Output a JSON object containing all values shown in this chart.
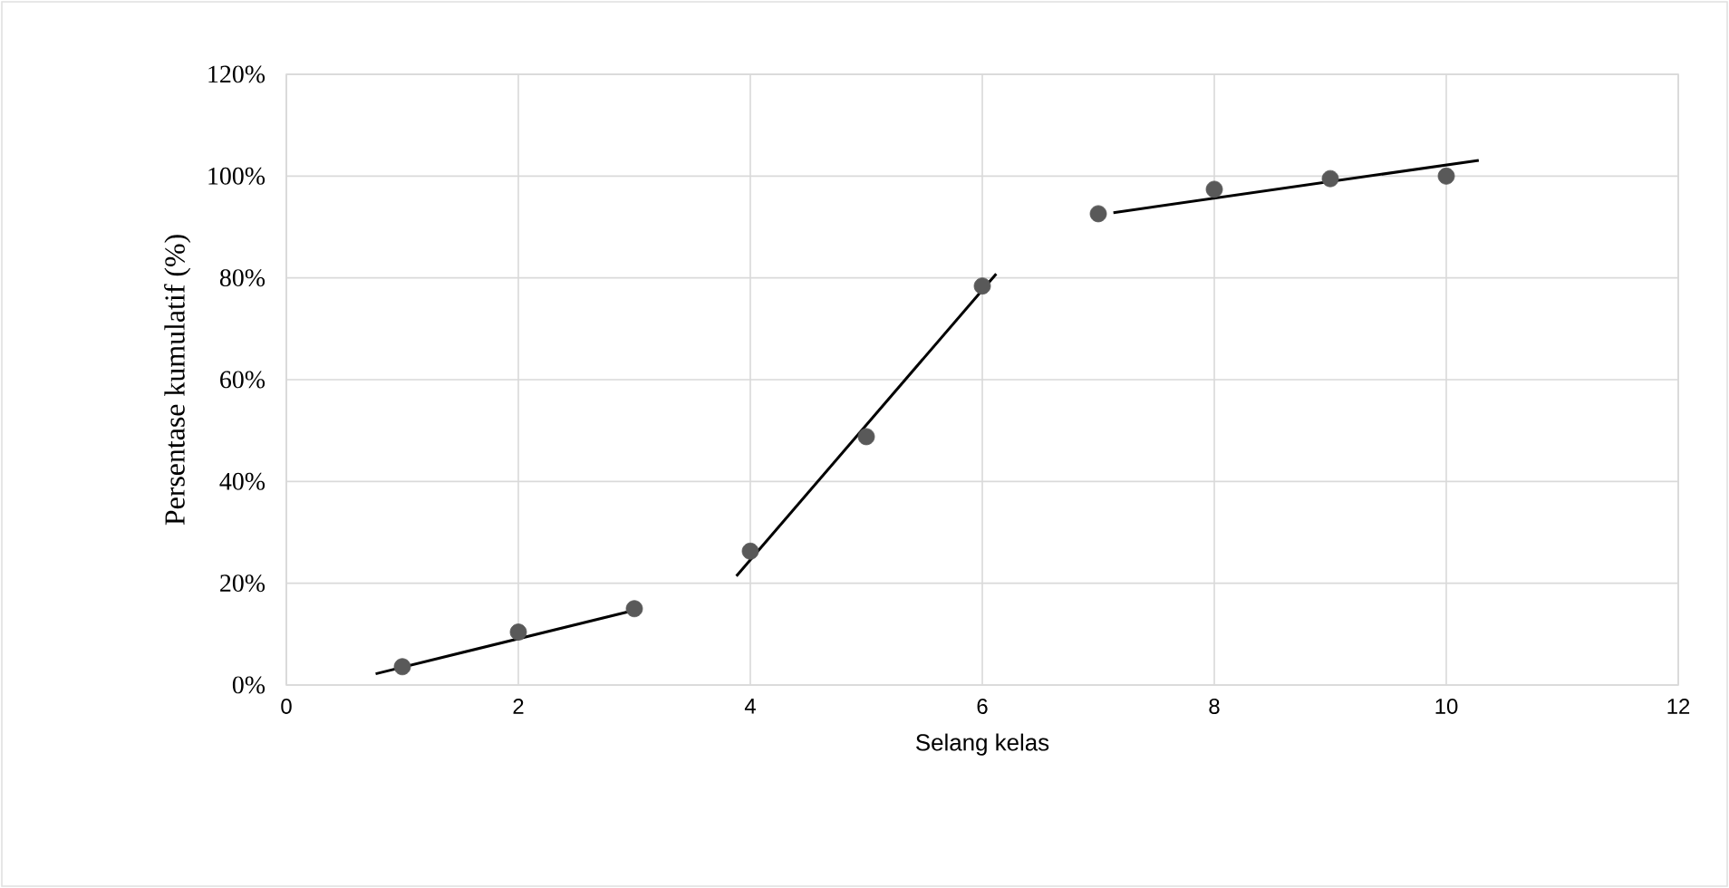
{
  "chart_data": {
    "type": "scatter",
    "xlabel": "Selang kelas",
    "ylabel": "Persentase kumulatif (%)",
    "xlim": [
      0,
      12
    ],
    "xticks": [
      0,
      2,
      4,
      6,
      8,
      10,
      12
    ],
    "ylim": [
      0,
      120
    ],
    "yticks": [
      {
        "value": 0,
        "label": "0%"
      },
      {
        "value": 20,
        "label": "20%"
      },
      {
        "value": 40,
        "label": "40%"
      },
      {
        "value": 60,
        "label": "60%"
      },
      {
        "value": 80,
        "label": "80%"
      },
      {
        "value": 100,
        "label": "100%"
      },
      {
        "value": 120,
        "label": "120%"
      }
    ],
    "grid": true,
    "series": [
      {
        "marker": "circle",
        "color": "#595959",
        "x": [
          1,
          2,
          3,
          4,
          5,
          6,
          7,
          8,
          9,
          10
        ],
        "values": [
          3.6,
          10.4,
          15,
          26.3,
          48.8,
          78.4,
          92.6,
          97.4,
          99.5,
          100
        ]
      },
      {
        "type": "line",
        "marker": "none",
        "color": "#000000",
        "x": [
          0.77,
          3.0
        ],
        "values": [
          2.2,
          14.7
        ]
      },
      {
        "type": "line",
        "marker": "none",
        "color": "#000000",
        "x": [
          3.88,
          6.12
        ],
        "values": [
          21.4,
          80.8
        ]
      },
      {
        "type": "line",
        "marker": "none",
        "color": "#000000",
        "x": [
          7.13,
          10.28
        ],
        "values": [
          92.8,
          103.1
        ]
      }
    ]
  }
}
